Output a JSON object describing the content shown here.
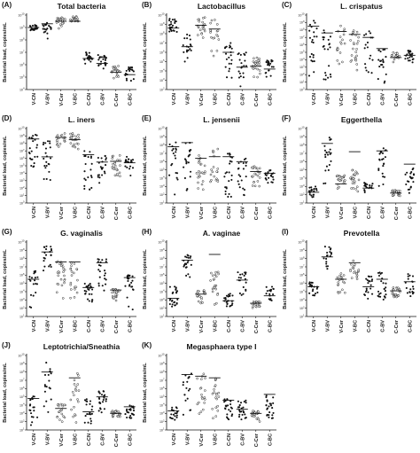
{
  "chart_data": [
    {
      "type": "scatter",
      "panel": "(A)",
      "title": "Total bacteria",
      "ylabel": "Bacterial load, copies/mL",
      "ylim_log10": [
        4,
        10
      ],
      "ytick_labels": [
        "10^10",
        "10^9",
        "10^8",
        "10^7",
        "10^6",
        "10^5",
        "10^4"
      ],
      "categories": [
        "V-CN",
        "V-BV",
        "V-Cer",
        "V-BC",
        "C-CN",
        "C-BV",
        "C-Cer",
        "C-BC"
      ],
      "means_log10": [
        9.0,
        9.3,
        9.5,
        9.5,
        6.5,
        6.1,
        5.4,
        5.2
      ],
      "series": [
        {
          "values": [
            [
              8.6,
              9.2
            ],
            [
              8.0,
              9.6
            ],
            [
              8.9,
              9.8
            ],
            [
              9.4,
              9.9
            ],
            [
              6.0,
              7.0
            ],
            [
              5.6,
              6.8
            ],
            [
              4.8,
              5.9
            ],
            [
              4.6,
              5.8
            ]
          ]
        }
      ]
    },
    {
      "type": "scatter",
      "panel": "(B)",
      "title": "Lactobacillus",
      "ylabel": "Bacterial load, copies/mL",
      "ylim_log10": [
        2,
        10
      ],
      "ytick_labels": [
        "10^10",
        "10^9",
        "10^8",
        "10^7",
        "10^6",
        "10^5",
        "10^4",
        "10^3",
        "10^2"
      ],
      "categories": [
        "V-CN",
        "V-BV",
        "V-Cer",
        "V-BC",
        "C-CN",
        "C-BV",
        "C-Cer",
        "C-BC"
      ],
      "means_log10": [
        8.6,
        6.6,
        8.9,
        8.5,
        6.0,
        4.4,
        4.5,
        4.2
      ],
      "series": [
        {
          "values": [
            [
              8.0,
              9.7
            ],
            [
              4.5,
              8.0
            ],
            [
              7.5,
              9.8
            ],
            [
              5.5,
              9.6
            ],
            [
              3.0,
              7.0
            ],
            [
              2.2,
              6.0
            ],
            [
              3.0,
              5.5
            ],
            [
              3.0,
              5.2
            ]
          ]
        }
      ]
    },
    {
      "type": "scatter",
      "panel": "(C)",
      "title": "L. crispatus",
      "ylabel": "Bacterial load, copies/mL",
      "ylim_log10": [
        0,
        10
      ],
      "ytick_labels": [
        "10^10",
        "10^9",
        "10^8",
        "10^7",
        "10^6",
        "10^5",
        "10^4",
        "10^3",
        "10^2",
        "10^1",
        "10^0"
      ],
      "categories": [
        "V-CN",
        "V-BV",
        "V-Cer",
        "V-BC",
        "C-CN",
        "C-BV",
        "C-Cer",
        "C-BC"
      ],
      "means_log10": [
        8.5,
        7.6,
        7.8,
        7.4,
        7.0,
        5.5,
        4.3,
        4.6
      ],
      "series": [
        {
          "values": [
            [
              1.5,
              9.6
            ],
            [
              1.0,
              8.5
            ],
            [
              3.0,
              9.0
            ],
            [
              2.0,
              8.0
            ],
            [
              1.5,
              8.0
            ],
            [
              0.3,
              5.5
            ],
            [
              3.5,
              5.0
            ],
            [
              3.5,
              5.3
            ]
          ]
        }
      ]
    },
    {
      "type": "scatter",
      "panel": "(D)",
      "title": "L. iners",
      "ylabel": "Bacterial load, copies/mL",
      "ylim_log10": [
        0,
        10
      ],
      "ytick_labels": [
        "10^10",
        "10^9",
        "10^8",
        "10^7",
        "10^6",
        "10^5",
        "10^4",
        "10^3",
        "10^2",
        "10^1",
        "10^0"
      ],
      "categories": [
        "V-CN",
        "V-BV",
        "V-Cer",
        "V-BC",
        "C-CN",
        "C-BV",
        "C-Cer",
        "C-BC"
      ],
      "means_log10": [
        8.6,
        6.2,
        8.8,
        8.5,
        6.5,
        5.5,
        5.6,
        5.4
      ],
      "series": [
        {
          "values": [
            [
              4.0,
              9.3
            ],
            [
              1.0,
              8.5
            ],
            [
              7.5,
              9.4
            ],
            [
              6.8,
              9.5
            ],
            [
              1.5,
              7.2
            ],
            [
              2.5,
              6.5
            ],
            [
              3.0,
              6.4
            ],
            [
              3.0,
              6.2
            ]
          ]
        }
      ]
    },
    {
      "type": "scatter",
      "panel": "(E)",
      "title": "L. jensenii",
      "ylabel": "Bacterial load, copies/mL",
      "ylim_log10": [
        1,
        10
      ],
      "ytick_labels": [
        "10^10",
        "10^9",
        "10^8",
        "10^7",
        "10^6",
        "10^5",
        "10^4",
        "10^3",
        "10^2",
        "10^1"
      ],
      "categories": [
        "V-CN",
        "V-BV",
        "V-Cer",
        "V-BC",
        "C-CN",
        "C-BV",
        "C-Cer",
        "C-BC"
      ],
      "means_log10": [
        7.8,
        8.3,
        6.4,
        6.6,
        6.6,
        6.0,
        4.8,
        4.6
      ],
      "series": [
        {
          "values": [
            [
              1.5,
              8.8
            ],
            [
              1.2,
              8.3
            ],
            [
              2.5,
              7.0
            ],
            [
              2.5,
              7.6
            ],
            [
              1.5,
              7.0
            ],
            [
              1.2,
              6.5
            ],
            [
              3.0,
              5.5
            ],
            [
              3.0,
              5.0
            ]
          ]
        }
      ]
    },
    {
      "type": "scatter",
      "panel": "(F)",
      "title": "Eggerthella",
      "ylabel": "Bacterial load, copies/mL",
      "ylim_log10": [
        1,
        10
      ],
      "ytick_labels": [
        "10^10",
        "10^9",
        "10^8",
        "10^7",
        "10^6",
        "10^5",
        "10^4",
        "10^3",
        "10^2",
        "10^1"
      ],
      "categories": [
        "V-CN",
        "V-BV",
        "V-Cer",
        "V-BC",
        "C-CN",
        "C-BV",
        "C-Cer",
        "C-BC"
      ],
      "means_log10": [
        2.3,
        8.2,
        3.3,
        7.2,
        2.8,
        7.3,
        2.2,
        5.7
      ],
      "series": [
        {
          "values": [
            [
              1.6,
              3.0
            ],
            [
              3.0,
              9.0
            ],
            [
              2.5,
              4.5
            ],
            [
              2.2,
              5.0
            ],
            [
              2.0,
              3.5
            ],
            [
              3.0,
              8.0
            ],
            [
              1.8,
              2.6
            ],
            [
              2.2,
              5.7
            ]
          ]
        }
      ]
    },
    {
      "type": "scatter",
      "panel": "(G)",
      "title": "G. vaginalis",
      "ylabel": "Bacterial load, copies/mL",
      "ylim_log10": [
        1,
        10
      ],
      "ytick_labels": [
        "10^10",
        "10^9",
        "10^8",
        "10^7",
        "10^6",
        "10^5",
        "10^4",
        "10^3",
        "10^2",
        "10^1"
      ],
      "categories": [
        "V-CN",
        "V-BV",
        "V-Cer",
        "V-BC",
        "C-CN",
        "C-BV",
        "C-Cer",
        "C-BC"
      ],
      "means_log10": [
        5.5,
        8.8,
        7.6,
        7.6,
        4.5,
        7.5,
        4.2,
        5.7
      ],
      "series": [
        {
          "values": [
            [
              2.0,
              6.5
            ],
            [
              6.5,
              9.8
            ],
            [
              2.5,
              7.8
            ],
            [
              2.5,
              7.5
            ],
            [
              2.5,
              5.0
            ],
            [
              4.0,
              8.0
            ],
            [
              2.5,
              4.3
            ],
            [
              1.5,
              6.0
            ]
          ]
        }
      ]
    },
    {
      "type": "scatter",
      "panel": "(H)",
      "title": "A. vaginae",
      "ylabel": "Bacterial load, copies/mL",
      "ylim_log10": [
        1,
        10
      ],
      "ytick_labels": [
        "10^10",
        "10^9",
        "10^8",
        "10^7",
        "10^6",
        "10^5",
        "10^4",
        "10^3",
        "10^2",
        "10^1"
      ],
      "categories": [
        "V-CN",
        "V-BV",
        "V-Cer",
        "V-BC",
        "C-CN",
        "C-BV",
        "C-Cer",
        "C-BC"
      ],
      "means_log10": [
        3.2,
        7.8,
        3.7,
        8.5,
        2.9,
        5.4,
        2.6,
        3.5
      ],
      "series": [
        {
          "values": [
            [
              1.8,
              4.8
            ],
            [
              5.5,
              8.5
            ],
            [
              2.2,
              4.2
            ],
            [
              2.2,
              6.5
            ],
            [
              2.0,
              3.8
            ],
            [
              3.5,
              6.4
            ],
            [
              2.0,
              2.8
            ],
            [
              2.2,
              5.0
            ]
          ]
        }
      ]
    },
    {
      "type": "scatter",
      "panel": "(I)",
      "title": "Prevotella",
      "ylabel": "Bacterial load, copies/mL",
      "ylim_log10": [
        1,
        10
      ],
      "ytick_labels": [
        "10^10",
        "10^9",
        "10^8",
        "10^7",
        "10^6",
        "10^5",
        "10^4",
        "10^3",
        "10^2",
        "10^1"
      ],
      "categories": [
        "V-CN",
        "V-BV",
        "V-Cer",
        "V-BC",
        "C-CN",
        "C-BV",
        "C-Cer",
        "C-BC"
      ],
      "means_log10": [
        4.6,
        8.2,
        5.5,
        7.5,
        4.6,
        5.5,
        4.1,
        5.2
      ],
      "series": [
        {
          "values": [
            [
              3.5,
              5.5
            ],
            [
              6.5,
              9.5
            ],
            [
              3.5,
              6.2
            ],
            [
              4.0,
              7.8
            ],
            [
              3.0,
              6.0
            ],
            [
              3.0,
              6.5
            ],
            [
              3.0,
              4.5
            ],
            [
              3.0,
              6.2
            ]
          ]
        }
      ]
    },
    {
      "type": "scatter",
      "panel": "(J)",
      "title": "Leptotrichia/Sneathia",
      "ylabel": "Bacterial load, copies/mL",
      "ylim_log10": [
        1,
        10
      ],
      "ytick_labels": [
        "10^10",
        "10^9",
        "10^8",
        "10^7",
        "10^6",
        "10^5",
        "10^4",
        "10^3",
        "10^2",
        "10^1"
      ],
      "categories": [
        "V-CN",
        "V-BV",
        "V-Cer",
        "V-BC",
        "C-CN",
        "C-BV",
        "C-Cer",
        "C-BC"
      ],
      "means_log10": [
        4.8,
        8.0,
        3.6,
        7.3,
        3.2,
        5.0,
        3.0,
        3.8
      ],
      "series": [
        {
          "values": [
            [
              1.5,
              5.2
            ],
            [
              2.5,
              9.4
            ],
            [
              1.8,
              4.2
            ],
            [
              1.8,
              8.0
            ],
            [
              1.5,
              4.8
            ],
            [
              2.5,
              5.8
            ],
            [
              2.5,
              3.3
            ],
            [
              2.2,
              4.0
            ]
          ]
        }
      ]
    },
    {
      "type": "scatter",
      "panel": "(K)",
      "title": "Megasphaera type I",
      "ylabel": "Bacterial load, copies/mL",
      "ylim_log10": [
        1,
        10
      ],
      "ytick_labels": [
        "10^10",
        "10^9",
        "10^8",
        "10^7",
        "10^6",
        "10^5",
        "10^4",
        "10^3",
        "10^2",
        "10^1"
      ],
      "categories": [
        "V-CN",
        "V-BV",
        "V-Cer",
        "V-BC",
        "C-CN",
        "C-BV",
        "C-Cer",
        "C-BC"
      ],
      "means_log10": [
        3.3,
        7.7,
        7.5,
        7.3,
        4.6,
        3.5,
        3.0,
        5.3
      ],
      "series": [
        {
          "values": [
            [
              2.0,
              3.8
            ],
            [
              2.0,
              8.2
            ],
            [
              2.5,
              8.0
            ],
            [
              2.0,
              7.5
            ],
            [
              2.0,
              4.8
            ],
            [
              2.0,
              4.6
            ],
            [
              2.0,
              3.4
            ],
            [
              2.0,
              5.2
            ]
          ]
        }
      ]
    }
  ]
}
